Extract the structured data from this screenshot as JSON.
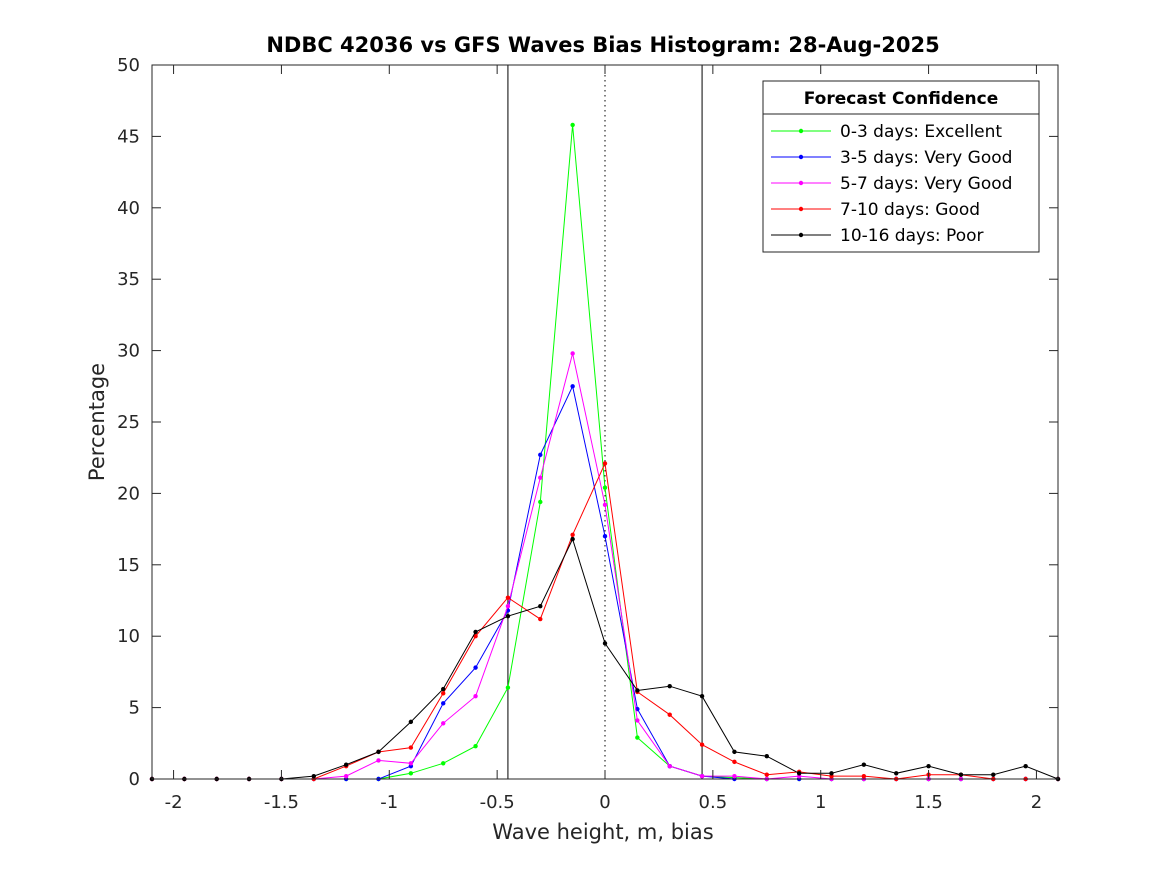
{
  "chart_data": {
    "type": "line",
    "title": "NDBC 42036 vs GFS Waves Bias Histogram: 28-Aug-2025",
    "xlabel": "Wave height, m, bias",
    "ylabel": "Percentage",
    "xlim": [
      -2.1,
      2.1
    ],
    "ylim": [
      0,
      50
    ],
    "xticks": [
      -2,
      -1.5,
      -1,
      -0.5,
      0,
      0.5,
      1,
      1.5,
      2
    ],
    "xtick_labels": [
      "-2",
      "-1.5",
      "-1",
      "-0.5",
      "0",
      "0.5",
      "1",
      "1.5",
      "2"
    ],
    "yticks": [
      0,
      5,
      10,
      15,
      20,
      25,
      30,
      35,
      40,
      45,
      50
    ],
    "ytick_labels": [
      "0",
      "5",
      "10",
      "15",
      "20",
      "25",
      "30",
      "35",
      "40",
      "45",
      "50"
    ],
    "grid": false,
    "legend_title": "Forecast Confidence",
    "legend_position": "top-right",
    "reference_lines": [
      {
        "x": -0.45,
        "style": "solid"
      },
      {
        "x": 0,
        "style": "dotted"
      },
      {
        "x": 0.45,
        "style": "solid"
      }
    ],
    "x": [
      -2.1,
      -1.95,
      -1.8,
      -1.65,
      -1.5,
      -1.35,
      -1.2,
      -1.05,
      -0.9,
      -0.75,
      -0.6,
      -0.45,
      -0.3,
      -0.15,
      0,
      0.15,
      0.3,
      0.45,
      0.6,
      0.75,
      0.9,
      1.05,
      1.2,
      1.35,
      1.5,
      1.65,
      1.8,
      1.95,
      2.1
    ],
    "series": [
      {
        "name": "0-3 days: Excellent",
        "color": "#00ff00",
        "values": [
          0,
          0,
          0,
          0,
          0,
          0,
          0,
          0,
          0.4,
          1.1,
          2.3,
          6.4,
          19.4,
          45.8,
          20.4,
          2.9,
          0.9,
          0.2,
          0.1,
          0,
          0,
          0,
          0,
          0,
          0,
          0,
          0,
          0,
          0
        ]
      },
      {
        "name": "3-5 days: Very Good",
        "color": "#0000ff",
        "values": [
          0,
          0,
          0,
          0,
          0,
          0,
          0,
          0,
          0.9,
          5.3,
          7.8,
          11.8,
          22.7,
          27.5,
          17.0,
          4.9,
          0.9,
          0.2,
          0,
          0,
          0,
          0,
          0,
          0,
          0,
          0,
          0,
          0,
          0
        ]
      },
      {
        "name": "5-7 days: Very Good",
        "color": "#ff00ff",
        "values": [
          0,
          0,
          0,
          0,
          0,
          0,
          0.2,
          1.3,
          1.1,
          3.9,
          5.8,
          12.1,
          21.1,
          29.8,
          19.2,
          4.1,
          0.9,
          0.2,
          0.2,
          0,
          0.2,
          0,
          0,
          0,
          0,
          0,
          0,
          0,
          0
        ]
      },
      {
        "name": "7-10 days: Good",
        "color": "#ff0000",
        "values": [
          0,
          0,
          0,
          0,
          0,
          0,
          0.9,
          1.9,
          2.2,
          6.0,
          10.0,
          12.7,
          11.2,
          17.1,
          22.1,
          6.1,
          4.5,
          2.4,
          1.2,
          0.3,
          0.5,
          0.2,
          0.2,
          0,
          0.3,
          0.3,
          0,
          0,
          0
        ]
      },
      {
        "name": "10-16 days: Poor",
        "color": "#000000",
        "values": [
          0,
          0,
          0,
          0,
          0,
          0.2,
          1.0,
          1.9,
          4.0,
          6.3,
          10.3,
          11.4,
          12.1,
          16.8,
          9.5,
          6.2,
          6.5,
          5.8,
          1.9,
          1.6,
          0.4,
          0.4,
          1.0,
          0.4,
          0.9,
          0.3,
          0.3,
          0.9,
          0
        ]
      }
    ]
  }
}
